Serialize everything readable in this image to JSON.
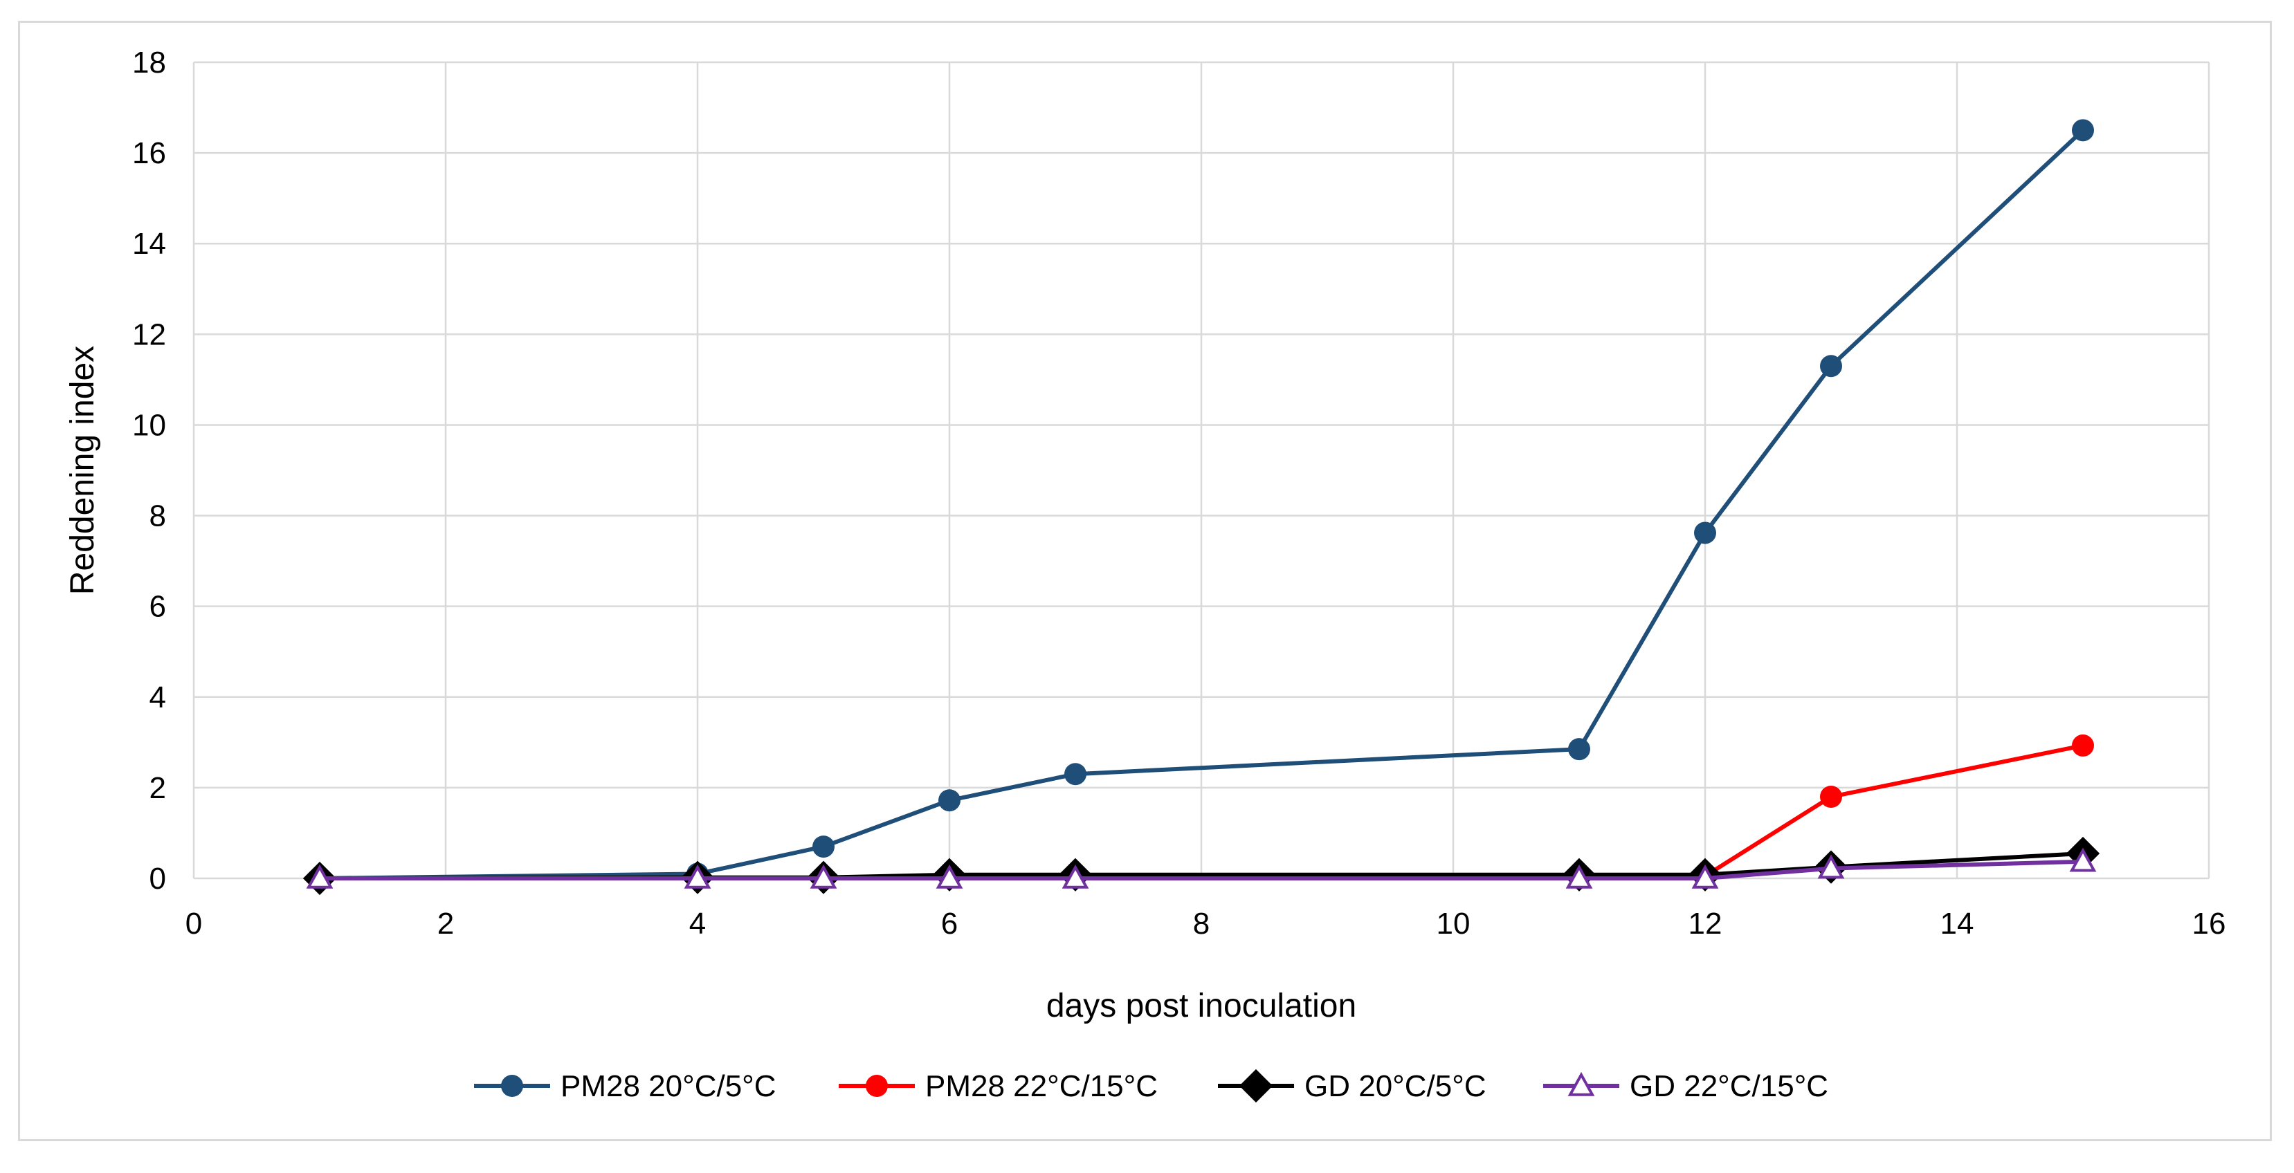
{
  "chart_data": {
    "type": "line",
    "title": "",
    "xlabel": "days post inoculation",
    "ylabel": "Reddening index",
    "xlim": [
      0,
      16
    ],
    "ylim": [
      0,
      18
    ],
    "xticks": [
      0,
      2,
      4,
      6,
      8,
      10,
      12,
      14,
      16
    ],
    "yticks": [
      0,
      2,
      4,
      6,
      8,
      10,
      12,
      14,
      16,
      18
    ],
    "grid": true,
    "legend_position": "bottom",
    "x": [
      1,
      4,
      5,
      6,
      7,
      11,
      12,
      13,
      15
    ],
    "series": [
      {
        "name": "PM28 20°C/5°C",
        "color": "#1f4e79",
        "marker": "circle",
        "values": [
          0,
          0.1,
          0.7,
          1.72,
          2.3,
          2.85,
          7.62,
          11.3,
          16.5
        ]
      },
      {
        "name": "PM28 22°C/15°C",
        "color": "#ff0000",
        "marker": "circle",
        "values": [
          0,
          0,
          0,
          0.05,
          0.05,
          0.05,
          0.05,
          1.8,
          2.93
        ]
      },
      {
        "name": "GD 20°C/5°C",
        "color": "#000000",
        "marker": "diamond",
        "values": [
          0,
          0.02,
          0.02,
          0.08,
          0.08,
          0.08,
          0.08,
          0.25,
          0.55
        ]
      },
      {
        "name": "GD 22°C/15°C",
        "color": "#7030a0",
        "marker": "triangle-open",
        "values": [
          0,
          0,
          0,
          0,
          0,
          0,
          0,
          0.22,
          0.37
        ]
      }
    ]
  }
}
